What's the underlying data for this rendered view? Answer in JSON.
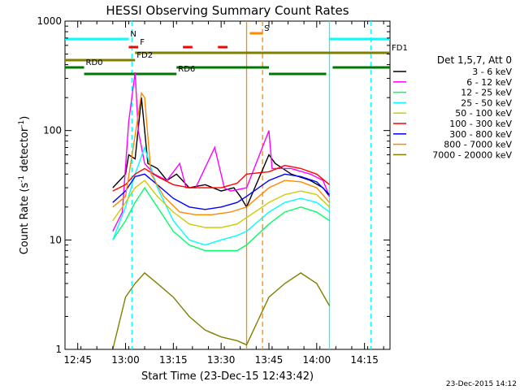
{
  "chart_data": {
    "type": "line",
    "title": "HESSI Observing Summary Count Rates",
    "xlabel": "Start Time (23-Dec-15 12:43:42)",
    "ylabel_main": "Count Rate (s",
    "ylabel_sup1": "-1",
    "ylabel_mid": " detector",
    "ylabel_sup2": "-1",
    "ylabel_end": ")",
    "yscale": "log",
    "ylim": [
      1,
      1000
    ],
    "xlim": [
      "12:41",
      "14:23"
    ],
    "x_ticks": [
      "12:45",
      "13:00",
      "13:15",
      "13:30",
      "13:45",
      "14:00",
      "14:15"
    ],
    "y_ticks": [
      "1",
      "10",
      "100",
      "1000"
    ],
    "legend_header": "Det 1,5,7, Att 0",
    "legend_position": "right",
    "timestamp": "23-Dec-2015 14:12",
    "series": [
      {
        "name": "3 - 6 keV",
        "color": "#000000",
        "x": [
          "12:56",
          "13:00",
          "13:01",
          "13:03",
          "13:05",
          "13:07",
          "13:10",
          "13:13",
          "13:16",
          "13:20",
          "13:25",
          "13:30",
          "13:34",
          "13:36",
          "13:38",
          "13:45",
          "13:47",
          "13:52",
          "13:58",
          "14:02",
          "14:04"
        ],
        "values": [
          30,
          40,
          60,
          55,
          200,
          50,
          45,
          35,
          40,
          30,
          32,
          28,
          30,
          25,
          20,
          60,
          50,
          40,
          35,
          30,
          25
        ]
      },
      {
        "name": "6 - 12 keV",
        "color": "#ff00ff",
        "x": [
          "12:56",
          "12:59",
          "13:01",
          "13:03",
          "13:04",
          "13:06",
          "13:09",
          "13:13",
          "13:17",
          "13:19",
          "13:22",
          "13:28",
          "13:31",
          "13:33",
          "13:38",
          "13:45",
          "13:46",
          "13:52",
          "13:58",
          "14:02",
          "14:04"
        ],
        "values": [
          12,
          18,
          120,
          340,
          100,
          50,
          40,
          35,
          50,
          30,
          30,
          70,
          30,
          28,
          30,
          100,
          45,
          45,
          40,
          35,
          25
        ]
      },
      {
        "name": "12 - 25 keV",
        "color": "#00ff66",
        "x": [
          "12:56",
          "13:00",
          "13:03",
          "13:06",
          "13:10",
          "13:15",
          "13:20",
          "13:25",
          "13:30",
          "13:35",
          "13:38",
          "13:45",
          "13:50",
          "13:55",
          "14:00",
          "14:04"
        ],
        "values": [
          10,
          15,
          22,
          30,
          20,
          12,
          9,
          8,
          8,
          8,
          9,
          14,
          18,
          20,
          18,
          15
        ]
      },
      {
        "name": "25 - 50 keV",
        "color": "#00ffff",
        "x": [
          "12:56",
          "13:00",
          "13:03",
          "13:06",
          "13:10",
          "13:15",
          "13:20",
          "13:25",
          "13:30",
          "13:35",
          "13:38",
          "13:45",
          "13:50",
          "13:55",
          "14:00",
          "14:04"
        ],
        "values": [
          10,
          20,
          40,
          70,
          30,
          15,
          10,
          9,
          10,
          11,
          12,
          18,
          22,
          24,
          22,
          18
        ]
      },
      {
        "name": "50 - 100 keV",
        "color": "#cccc00",
        "x": [
          "12:56",
          "13:00",
          "13:03",
          "13:06",
          "13:10",
          "13:15",
          "13:20",
          "13:25",
          "13:30",
          "13:35",
          "13:38",
          "13:45",
          "13:50",
          "13:55",
          "14:00",
          "14:04"
        ],
        "values": [
          15,
          22,
          30,
          35,
          25,
          18,
          14,
          13,
          13,
          14,
          16,
          22,
          26,
          28,
          26,
          20
        ]
      },
      {
        "name": "100 - 300 keV",
        "color": "#ff0000",
        "x": [
          "12:56",
          "13:00",
          "13:03",
          "13:06",
          "13:10",
          "13:15",
          "13:20",
          "13:25",
          "13:30",
          "13:35",
          "13:38",
          "13:45",
          "13:50",
          "13:55",
          "14:00",
          "14:04"
        ],
        "values": [
          28,
          32,
          40,
          45,
          38,
          32,
          30,
          30,
          30,
          33,
          40,
          42,
          48,
          45,
          40,
          32
        ]
      },
      {
        "name": "300 - 800 keV",
        "color": "#0000ff",
        "x": [
          "12:56",
          "13:00",
          "13:03",
          "13:06",
          "13:10",
          "13:15",
          "13:20",
          "13:25",
          "13:30",
          "13:35",
          "13:38",
          "13:45",
          "13:50",
          "13:55",
          "14:00",
          "14:04"
        ],
        "values": [
          22,
          28,
          38,
          40,
          32,
          24,
          20,
          19,
          20,
          22,
          25,
          35,
          40,
          38,
          34,
          26
        ]
      },
      {
        "name": "800 - 7000 keV",
        "color": "#ff8800",
        "x": [
          "12:56",
          "13:00",
          "13:03",
          "13:05",
          "13:06",
          "13:08",
          "13:12",
          "13:17",
          "13:22",
          "13:27",
          "13:33",
          "13:38",
          "13:45",
          "13:50",
          "13:55",
          "14:00",
          "14:04"
        ],
        "values": [
          20,
          25,
          90,
          220,
          200,
          40,
          25,
          18,
          17,
          17,
          18,
          20,
          30,
          35,
          34,
          30,
          22
        ]
      },
      {
        "name": "7000 - 20000 keV",
        "color": "#808000",
        "x": [
          "12:56",
          "13:00",
          "13:03",
          "13:06",
          "13:10",
          "13:15",
          "13:20",
          "13:25",
          "13:30",
          "13:35",
          "13:38",
          "13:45",
          "13:50",
          "13:55",
          "14:00",
          "14:04"
        ],
        "values": [
          1,
          3,
          4,
          5,
          4,
          3,
          2,
          1.5,
          1.3,
          1.2,
          1.1,
          3,
          4,
          5,
          4,
          2.5
        ]
      }
    ],
    "segments": [
      {
        "label": "N",
        "color": "#00ffff",
        "start": "12:41",
        "end": "13:01",
        "level": 48,
        "thick": 3
      },
      {
        "label": "",
        "color": "#00ffff",
        "start": "14:04",
        "end": "14:23",
        "level": 48,
        "thick": 3
      },
      {
        "label": "F",
        "color": "#ff0000",
        "start": "13:01",
        "end": "13:04",
        "level": 58,
        "thick": 3
      },
      {
        "label": "",
        "color": "#ff0000",
        "start": "13:18",
        "end": "13:21",
        "level": 58,
        "thick": 3
      },
      {
        "label": "",
        "color": "#ff0000",
        "start": "13:29",
        "end": "13:32",
        "level": 58,
        "thick": 3
      },
      {
        "label": "S",
        "color": "#ff8800",
        "start": "13:39",
        "end": "13:43",
        "level": 41,
        "thick": 3
      },
      {
        "label": "FD1",
        "color": "#808000",
        "start": "13:03",
        "end": "14:23",
        "level": 65,
        "thick": 3
      },
      {
        "label": "FD2",
        "color": "#808000",
        "start": "12:41",
        "end": "13:03",
        "level": 74,
        "thick": 3
      },
      {
        "label": "RD0",
        "color": "#007700",
        "start": "12:41",
        "end": "12:47",
        "level": 83,
        "thick": 3
      },
      {
        "label": "",
        "color": "#007700",
        "start": "13:16",
        "end": "13:45",
        "level": 83,
        "thick": 3
      },
      {
        "label": "",
        "color": "#007700",
        "start": "14:05",
        "end": "14:23",
        "level": 83,
        "thick": 3
      },
      {
        "label": "RD6",
        "color": "#007700",
        "start": "12:47",
        "end": "13:16",
        "level": 91,
        "thick": 3
      },
      {
        "label": "",
        "color": "#007700",
        "start": "13:45",
        "end": "14:03",
        "level": 91,
        "thick": 3
      }
    ],
    "vlines": [
      {
        "x": "13:02",
        "color": "#00ffff",
        "style": "dash"
      },
      {
        "x": "14:04",
        "color": "#00ffff",
        "style": "solid"
      },
      {
        "x": "14:17",
        "color": "#00ffff",
        "style": "dash"
      },
      {
        "x": "13:38",
        "color": "#ff8800",
        "style": "solid"
      },
      {
        "x": "13:43",
        "color": "#ff8800",
        "style": "dash"
      }
    ]
  }
}
